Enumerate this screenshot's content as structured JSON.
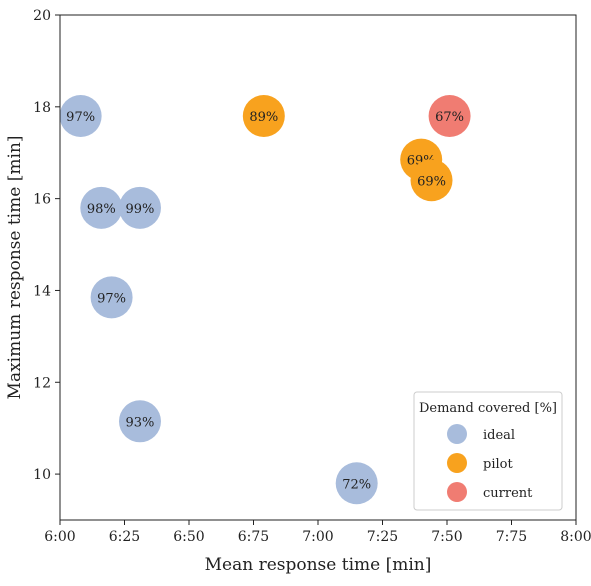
{
  "chart_data": {
    "type": "scatter",
    "title": "",
    "xlabel": "Mean response time [min]",
    "ylabel": "Maximum response time [min]",
    "xlim": [
      6.0,
      8.0
    ],
    "ylim": [
      9.0,
      20.0
    ],
    "x_tick_values": [
      6.0,
      6.25,
      6.5,
      6.75,
      7.0,
      7.25,
      7.5,
      7.75,
      8.0
    ],
    "x_tick_labels": [
      "6:00",
      "6:25",
      "6:50",
      "6:75",
      "7:00",
      "7:25",
      "7:50",
      "7:75",
      "8:00"
    ],
    "y_ticks": [
      10,
      12,
      14,
      16,
      18,
      20
    ],
    "grid": false,
    "legend": {
      "title": "Demand covered [%]",
      "position": "bottom-right",
      "entries": [
        "ideal",
        "pilot",
        "current"
      ]
    },
    "colors": {
      "ideal": "#a8bcdc",
      "pilot": "#f8a21e",
      "current": "#f07c72"
    },
    "series": [
      {
        "name": "ideal",
        "points": [
          {
            "x": 6.08,
            "y": 17.8,
            "label": "97%"
          },
          {
            "x": 6.16,
            "y": 15.8,
            "label": "98%"
          },
          {
            "x": 6.31,
            "y": 15.8,
            "label": "99%"
          },
          {
            "x": 6.2,
            "y": 13.85,
            "label": "97%"
          },
          {
            "x": 6.31,
            "y": 11.15,
            "label": "93%"
          },
          {
            "x": 7.15,
            "y": 9.8,
            "label": "72%"
          }
        ]
      },
      {
        "name": "pilot",
        "points": [
          {
            "x": 6.79,
            "y": 17.8,
            "label": "89%"
          },
          {
            "x": 7.4,
            "y": 16.85,
            "label": "69%"
          },
          {
            "x": 7.44,
            "y": 16.4,
            "label": "69%"
          }
        ]
      },
      {
        "name": "current",
        "points": [
          {
            "x": 7.51,
            "y": 17.8,
            "label": "67%"
          }
        ]
      }
    ]
  }
}
